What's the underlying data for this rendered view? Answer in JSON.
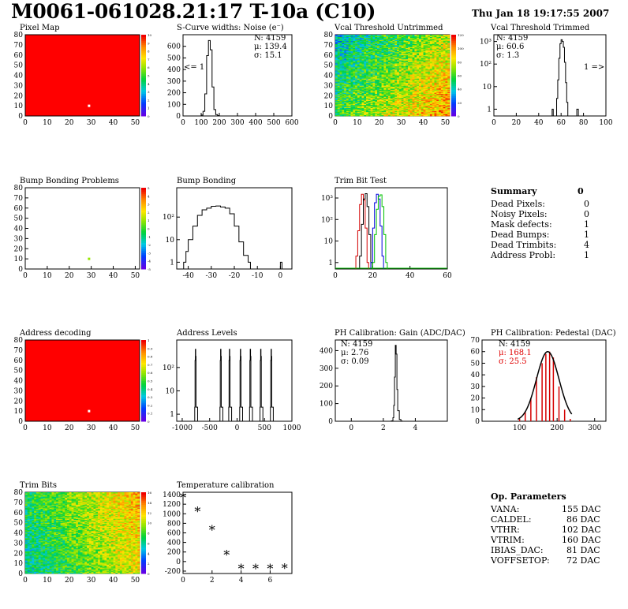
{
  "header": {
    "title": "M0061-061028.21:17 T-10a (C10)",
    "date": "Thu Jan 18 19:17:55 2007"
  },
  "panels": {
    "pixel_map": {
      "title": "Pixel Map"
    },
    "scurve": {
      "title": "S-Curve widths: Noise (e⁻)",
      "stats": [
        "N: 4159",
        "μ: 139.4",
        "σ: 15.1"
      ],
      "overflow_label": "<= 1"
    },
    "vcal_untrimmed": {
      "title": "Vcal Threshold Untrimmed"
    },
    "vcal_trimmed": {
      "title": "Vcal Threshold Trimmed",
      "stats": [
        "N: 4159",
        "μ: 60.6",
        "σ: 1.3"
      ],
      "overflow_label": "1 =>"
    },
    "bump_problems": {
      "title": "Bump Bonding Problems"
    },
    "bump_bonding": {
      "title": "Bump Bonding"
    },
    "trim_bit_test": {
      "title": "Trim Bit Test"
    },
    "address_decoding": {
      "title": "Address decoding"
    },
    "address_levels": {
      "title": "Address Levels"
    },
    "ph_gain": {
      "title": "PH Calibration: Gain (ADC/DAC)",
      "stats": [
        "N: 4159",
        "μ: 2.76",
        "σ: 0.09"
      ]
    },
    "ph_pedestal": {
      "title": "PH Calibration: Pedestal (DAC)",
      "stats": [
        "N: 4159",
        "μ: 168.1",
        "σ: 25.5"
      ]
    },
    "trim_bits": {
      "title": "Trim Bits"
    },
    "temperature": {
      "title": "Temperature calibration"
    }
  },
  "summary": {
    "title": "Summary",
    "value": "0",
    "rows": [
      {
        "label": "Dead Pixels:",
        "value": "0"
      },
      {
        "label": "Noisy Pixels:",
        "value": "0"
      },
      {
        "label": "Mask defects:",
        "value": "1"
      },
      {
        "label": "Dead Bumps:",
        "value": "1"
      },
      {
        "label": "Dead Trimbits:",
        "value": "4"
      },
      {
        "label": "Address Probl:",
        "value": "1"
      }
    ]
  },
  "op_params": {
    "title": "Op. Parameters",
    "rows": [
      {
        "label": "VANA:",
        "value": "155 DAC"
      },
      {
        "label": "CALDEL:",
        "value": "86 DAC"
      },
      {
        "label": "VTHR:",
        "value": "102 DAC"
      },
      {
        "label": "VTRIM:",
        "value": "160 DAC"
      },
      {
        "label": "IBIAS_DAC:",
        "value": "81 DAC"
      },
      {
        "label": "VOFFSETOP:",
        "value": "72 DAC"
      }
    ]
  },
  "colors": {
    "hist_line": "#000000",
    "accent_red": "#d40000",
    "accent_green": "#00c000",
    "stats_red": "#e00000"
  },
  "chart_data": [
    {
      "id": "pixel_map",
      "type": "heatmap",
      "title": "Pixel Map",
      "xlim": [
        0,
        52
      ],
      "ylim": [
        0,
        80
      ],
      "xticks": [
        0,
        10,
        20,
        30,
        40,
        50
      ],
      "yticks": [
        0,
        10,
        20,
        30,
        40,
        50,
        60,
        70,
        80
      ],
      "zticks": [
        0,
        1,
        2,
        3,
        4,
        5,
        6,
        7,
        8,
        9,
        10
      ],
      "fill_value": 10,
      "outliers": [
        {
          "x": 29,
          "y": 10,
          "value": 0
        }
      ]
    },
    {
      "id": "scurve",
      "type": "bar",
      "title": "S-Curve widths: Noise (e⁻)",
      "xlim": [
        0,
        600
      ],
      "ylim": [
        0,
        700
      ],
      "xticks": [
        0,
        100,
        200,
        300,
        400,
        500,
        600
      ],
      "yticks": [
        0,
        100,
        200,
        300,
        400,
        500,
        600
      ],
      "x": [
        90,
        100,
        110,
        120,
        130,
        140,
        150,
        160,
        170,
        180,
        190,
        200
      ],
      "values": [
        0,
        8,
        40,
        190,
        520,
        650,
        570,
        250,
        55,
        12,
        3,
        0
      ]
    },
    {
      "id": "vcal_untrimmed",
      "type": "heatmap",
      "title": "Vcal Threshold Untrimmed",
      "xlim": [
        0,
        52
      ],
      "ylim": [
        0,
        80
      ],
      "xticks": [
        0,
        10,
        20,
        30,
        40,
        50
      ],
      "yticks": [
        0,
        10,
        20,
        30,
        40,
        50,
        60,
        70,
        80
      ],
      "zticks": [
        0,
        20,
        40,
        60,
        80,
        100,
        120
      ],
      "zlim": [
        0,
        130
      ],
      "gradient": "y-left-to-x-right"
    },
    {
      "id": "vcal_trimmed",
      "type": "bar",
      "title": "Vcal Threshold Trimmed",
      "xlim": [
        0,
        100
      ],
      "ylog": true,
      "ylim": [
        0.5,
        2000
      ],
      "xticks": [
        0,
        20,
        40,
        60,
        80,
        100
      ],
      "ytick_labels": [
        "1",
        "10",
        "10²",
        "10³"
      ],
      "x": [
        52,
        53,
        56,
        57,
        58,
        59,
        60,
        61,
        62,
        63,
        64,
        65,
        66,
        74
      ],
      "values": [
        1,
        0,
        3,
        20,
        180,
        800,
        1200,
        1000,
        550,
        120,
        15,
        2,
        0,
        1
      ]
    },
    {
      "id": "bump_problems",
      "type": "heatmap",
      "title": "Bump Bonding Problems",
      "xlim": [
        0,
        52
      ],
      "ylim": [
        0,
        80
      ],
      "xticks": [
        0,
        10,
        20,
        30,
        40,
        50
      ],
      "yticks": [
        0,
        10,
        20,
        30,
        40,
        50,
        60,
        70,
        80
      ],
      "zticks": [
        -5,
        -4,
        -3,
        -2,
        -1,
        0,
        1,
        2,
        3,
        4,
        5
      ],
      "fill_value": null,
      "outliers": [
        {
          "x": 29,
          "y": 10,
          "value": 1
        }
      ]
    },
    {
      "id": "bump_bonding",
      "type": "bar",
      "title": "Bump Bonding",
      "xlim": [
        -45,
        5
      ],
      "ylog": true,
      "ylim": [
        0.5,
        2000
      ],
      "xticks": [
        -40,
        -30,
        -20,
        -10,
        0
      ],
      "ytick_labels": [
        "1",
        "10",
        "10²"
      ],
      "x": [
        -42,
        -41,
        -40,
        -38,
        -36,
        -34,
        -32,
        -30,
        -28,
        -26,
        -24,
        -22,
        -20,
        -18,
        -16,
        -14,
        -13,
        0
      ],
      "values": [
        1,
        3,
        10,
        40,
        120,
        210,
        250,
        300,
        310,
        280,
        250,
        140,
        40,
        8,
        2,
        1,
        0,
        1
      ]
    },
    {
      "id": "trim_bit_test",
      "type": "line",
      "title": "Trim Bit Test",
      "xlim": [
        0,
        60
      ],
      "ylog": true,
      "ylim": [
        0.5,
        3000
      ],
      "xticks": [
        0,
        20,
        40,
        60
      ],
      "ytick_labels": [
        "1",
        "10",
        "10²",
        "10³"
      ],
      "series": [
        {
          "color": "#d40000",
          "x": [
            11,
            12,
            13,
            14,
            15,
            16,
            17
          ],
          "values": [
            2,
            30,
            500,
            1500,
            800,
            40,
            1
          ]
        },
        {
          "color": "#000000",
          "x": [
            13,
            14,
            15,
            16,
            17,
            18,
            19
          ],
          "values": [
            2,
            60,
            900,
            1600,
            400,
            20,
            1
          ]
        },
        {
          "color": "#0000dd",
          "x": [
            19,
            20,
            21,
            22,
            23,
            24,
            25
          ],
          "values": [
            1,
            40,
            600,
            1500,
            900,
            50,
            2
          ]
        },
        {
          "color": "#00c000",
          "x": [
            20,
            21,
            22,
            23,
            24,
            25,
            26,
            27
          ],
          "values": [
            1,
            20,
            300,
            1200,
            1400,
            400,
            20,
            1
          ]
        }
      ]
    },
    {
      "id": "address_decoding",
      "type": "heatmap",
      "title": "Address decoding",
      "xlim": [
        0,
        52
      ],
      "ylim": [
        0,
        80
      ],
      "xticks": [
        0,
        10,
        20,
        30,
        40,
        50
      ],
      "yticks": [
        0,
        10,
        20,
        30,
        40,
        50,
        60,
        70,
        80
      ],
      "zticks": [
        0,
        0.1,
        0.2,
        0.3,
        0.4,
        0.5,
        0.6,
        0.7,
        0.8,
        0.9,
        1
      ],
      "fill_value": 1,
      "outliers": [
        {
          "x": 29,
          "y": 10,
          "value": 0
        }
      ]
    },
    {
      "id": "address_levels",
      "type": "bar",
      "title": "Address Levels",
      "xlim": [
        -1100,
        1000
      ],
      "ylog": true,
      "ylim": [
        0.5,
        1500
      ],
      "xticks": [
        -1000,
        -500,
        0,
        500,
        1000
      ],
      "ytick_labels": [
        "1",
        "10",
        "10²"
      ],
      "peaks": [
        -760,
        -300,
        -140,
        60,
        240,
        430,
        620
      ]
    },
    {
      "id": "ph_gain",
      "type": "bar",
      "title": "PH Calibration: Gain (ADC/DAC)",
      "xlim": [
        -1,
        6
      ],
      "ylim": [
        0,
        460
      ],
      "xticks": [
        0,
        2,
        4
      ],
      "yticks": [
        0,
        100,
        200,
        300,
        400
      ],
      "x": [
        2.5,
        2.6,
        2.65,
        2.7,
        2.75,
        2.8,
        2.85,
        2.9,
        3.0,
        3.1
      ],
      "values": [
        2,
        20,
        90,
        250,
        430,
        380,
        180,
        60,
        10,
        1
      ]
    },
    {
      "id": "ph_pedestal",
      "type": "bar",
      "title": "PH Calibration: Pedestal (DAC)",
      "xlim": [
        0,
        330
      ],
      "ylim": [
        0,
        70
      ],
      "xticks": [
        100,
        200,
        300
      ],
      "yticks": [
        0,
        10,
        20,
        30,
        40,
        50,
        60,
        70
      ],
      "x": [
        100,
        115,
        130,
        145,
        160,
        170,
        180,
        190,
        205,
        220,
        235
      ],
      "values": [
        2,
        8,
        20,
        38,
        50,
        58,
        60,
        55,
        30,
        10,
        2
      ]
    },
    {
      "id": "trim_bits",
      "type": "heatmap",
      "title": "Trim Bits",
      "xlim": [
        0,
        52
      ],
      "ylim": [
        0,
        80
      ],
      "xticks": [
        0,
        10,
        20,
        30,
        40,
        50
      ],
      "yticks": [
        0,
        10,
        20,
        30,
        40,
        50,
        60,
        70,
        80
      ],
      "zticks": [
        0,
        2,
        4,
        6,
        8,
        10,
        12,
        14,
        16
      ],
      "zlim": [
        0,
        16
      ],
      "gradient": "y-left-to-x-right"
    },
    {
      "id": "temperature",
      "type": "scatter",
      "title": "Temperature calibration",
      "xlim": [
        0,
        7.5
      ],
      "ylim": [
        -250,
        1450
      ],
      "xticks": [
        0,
        2,
        4,
        6
      ],
      "yticks": [
        -200,
        0,
        200,
        400,
        600,
        800,
        1000,
        1200,
        1400
      ],
      "x": [
        0,
        1,
        2,
        3,
        4,
        5,
        6,
        7
      ],
      "values": [
        1330,
        1040,
        650,
        130,
        -160,
        -160,
        -160,
        -150
      ]
    }
  ]
}
